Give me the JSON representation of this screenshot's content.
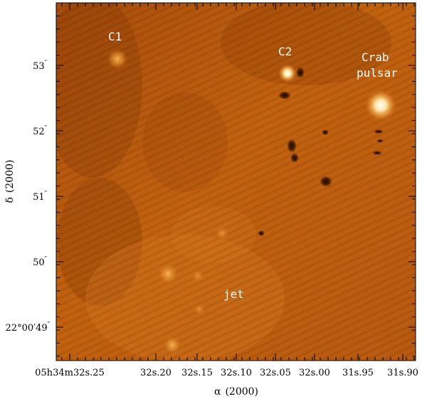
{
  "colors": {
    "background": "#c05e12",
    "dark": "#5a2604",
    "bright": "#ffffff"
  },
  "annotations": {
    "c1": "C1",
    "c2": "C2",
    "crab_line1": "Crab",
    "crab_line2": "pulsar",
    "jet": "jet"
  },
  "y_axis": {
    "label_symbol": "δ",
    "label_text": "(2000)",
    "ticks": [
      {
        "main": "53",
        "sup": "″"
      },
      {
        "main": "52",
        "sup": "″"
      },
      {
        "main": "51",
        "sup": "″"
      },
      {
        "main": "50",
        "sup": "″"
      },
      {
        "main": "22°00′49",
        "sup": "″"
      }
    ]
  },
  "x_axis": {
    "label_symbol": "α",
    "label_text": "(2000)",
    "ticks": [
      {
        "main": "05h34m32s.25"
      },
      {
        "main": "32s.20"
      },
      {
        "main": "32s.15"
      },
      {
        "main": "32s.10"
      },
      {
        "main": "32s.05"
      },
      {
        "main": "32s.00"
      },
      {
        "main": "31s.95"
      },
      {
        "main": "31s.90"
      }
    ]
  }
}
